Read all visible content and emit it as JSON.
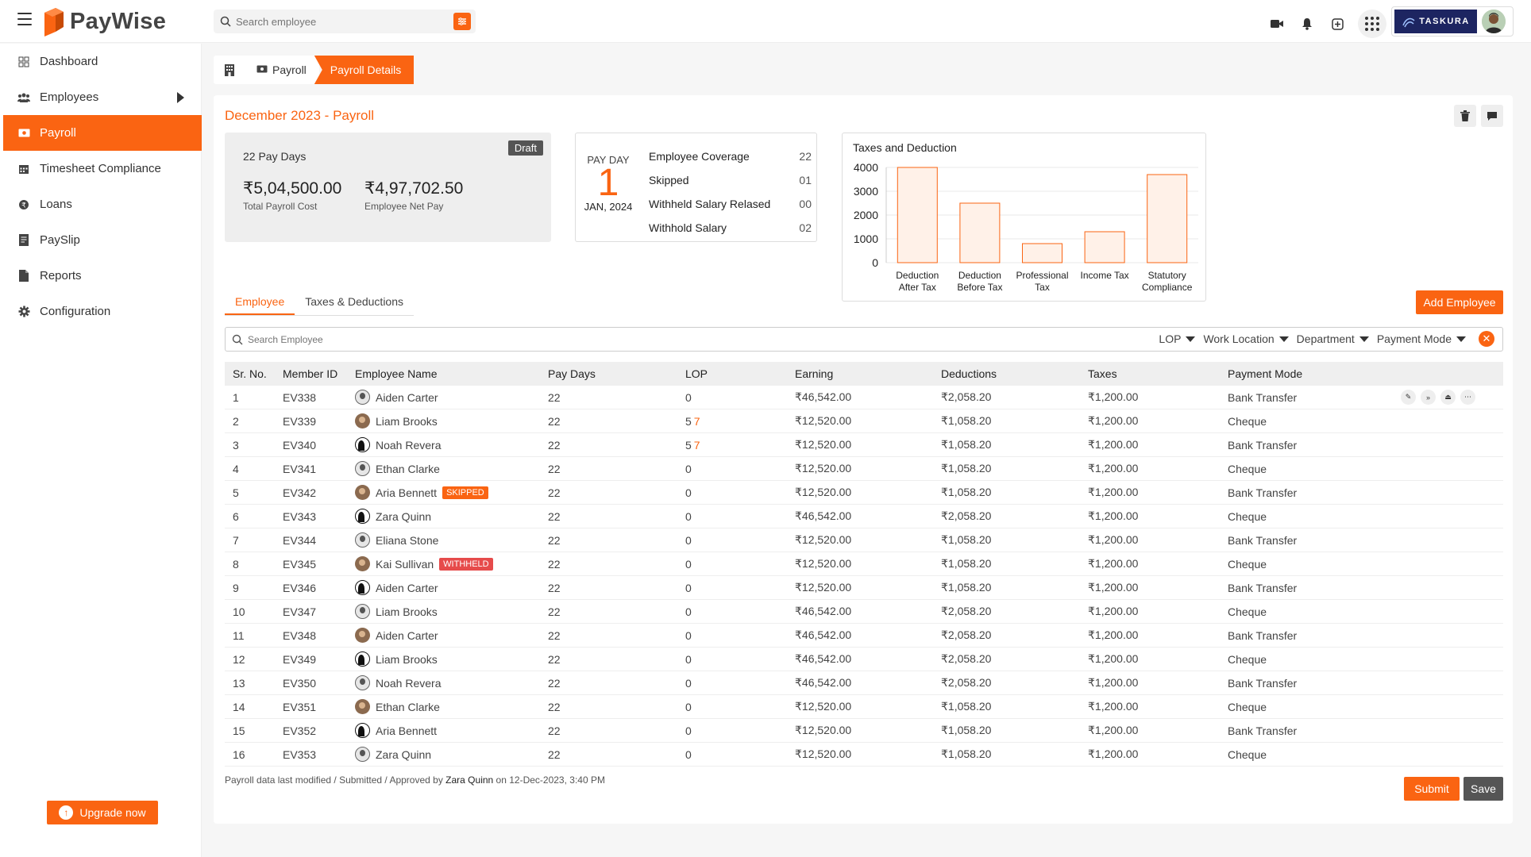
{
  "app": {
    "name": "PayWise"
  },
  "topbar": {
    "search_placeholder": "Search employee",
    "company_logo_text": "TASKURA",
    "icons": [
      "menu-icon",
      "filter-icon",
      "video-icon",
      "bell-icon",
      "plus-square-icon",
      "apps-grid-icon"
    ]
  },
  "sidebar": {
    "items": [
      {
        "label": "Dashboard",
        "icon": "dashboard-icon"
      },
      {
        "label": "Employees",
        "icon": "users-icon"
      },
      {
        "label": "Payroll",
        "icon": "payroll-icon"
      },
      {
        "label": "Timesheet Compliance",
        "icon": "calendar-icon"
      },
      {
        "label": "Loans",
        "icon": "loan-icon"
      },
      {
        "label": "PaySlip",
        "icon": "payslip-icon"
      },
      {
        "label": "Reports",
        "icon": "report-icon"
      },
      {
        "label": "Configuration",
        "icon": "gear-icon"
      }
    ],
    "upgrade_label": "Upgrade now"
  },
  "breadcrumb": {
    "item": "Payroll",
    "active": "Payroll Details"
  },
  "payroll": {
    "title": "December 2023 - Payroll",
    "status": "Draft",
    "pay_days": "22 Pay Days",
    "total_cost": "₹5,04,500.00",
    "total_cost_label": "Total Payroll Cost",
    "net_pay": "₹4,97,702.50",
    "net_pay_label": "Employee Net Pay"
  },
  "payday": {
    "label": "PAY DAY",
    "day": "1",
    "date": "JAN, 2024",
    "stats": [
      {
        "label": "Employee Coverage",
        "value": "22"
      },
      {
        "label": "Skipped",
        "value": "01"
      },
      {
        "label": "Withheld Salary Relased",
        "value": "00"
      },
      {
        "label": "Withhold Salary",
        "value": "02"
      }
    ]
  },
  "chart_data": {
    "type": "bar",
    "title": "Taxes and Deduction",
    "categories": [
      [
        "Deduction",
        "After Tax"
      ],
      [
        "Deduction",
        "Before Tax"
      ],
      [
        "Professional",
        "Tax"
      ],
      [
        "Income Tax"
      ],
      [
        "Statutory",
        "Compliance"
      ]
    ],
    "values": [
      4000,
      2500,
      800,
      1300,
      3700
    ],
    "ylim": [
      0,
      4000
    ],
    "yticks": [
      0,
      1000,
      2000,
      3000,
      4000
    ],
    "grid": true,
    "bar_fill": "#fff1e8",
    "bar_stroke": "#fa6412"
  },
  "tabs": [
    "Employee",
    "Taxes & Deductions"
  ],
  "add_employee_label": "Add Employee",
  "filters": {
    "search_placeholder": "Search Employee",
    "dropdowns": [
      "LOP",
      "Work Location",
      "Department",
      "Payment Mode"
    ]
  },
  "table": {
    "headers": [
      "Sr. No.",
      "Member ID",
      "Employee Name",
      "Pay Days",
      "LOP",
      "Earning",
      "Deductions",
      "Taxes",
      "Payment Mode"
    ],
    "rows": [
      {
        "sr": "1",
        "id": "EV338",
        "name": "Aiden Carter",
        "avatar": "a",
        "badge": "",
        "pay_days": "22",
        "lop": "0",
        "lop_extra": "",
        "earning": "₹46,542.00",
        "deductions": "₹2,058.20",
        "taxes": "₹1,200.00",
        "mode": "Bank Transfer",
        "actions": true
      },
      {
        "sr": "2",
        "id": "EV339",
        "name": "Liam Brooks",
        "avatar": "b",
        "badge": "",
        "pay_days": "22",
        "lop": "5",
        "lop_extra": "7",
        "earning": "₹12,520.00",
        "deductions": "₹1,058.20",
        "taxes": "₹1,200.00",
        "mode": "Cheque"
      },
      {
        "sr": "3",
        "id": "EV340",
        "name": "Noah Revera",
        "avatar": "c",
        "badge": "",
        "pay_days": "22",
        "lop": "5",
        "lop_extra": "7",
        "earning": "₹12,520.00",
        "deductions": "₹1,058.20",
        "taxes": "₹1,200.00",
        "mode": "Bank Transfer"
      },
      {
        "sr": "4",
        "id": "EV341",
        "name": "Ethan Clarke",
        "avatar": "a",
        "badge": "",
        "pay_days": "22",
        "lop": "0",
        "lop_extra": "",
        "earning": "₹12,520.00",
        "deductions": "₹1,058.20",
        "taxes": "₹1,200.00",
        "mode": "Cheque"
      },
      {
        "sr": "5",
        "id": "EV342",
        "name": "Aria Bennett",
        "avatar": "b",
        "badge": "SKIPPED",
        "pay_days": "22",
        "lop": "0",
        "lop_extra": "",
        "earning": "₹12,520.00",
        "deductions": "₹1,058.20",
        "taxes": "₹1,200.00",
        "mode": "Bank Transfer"
      },
      {
        "sr": "6",
        "id": "EV343",
        "name": "Zara Quinn",
        "avatar": "c",
        "badge": "",
        "pay_days": "22",
        "lop": "0",
        "lop_extra": "",
        "earning": "₹46,542.00",
        "deductions": "₹2,058.20",
        "taxes": "₹1,200.00",
        "mode": "Cheque"
      },
      {
        "sr": "7",
        "id": "EV344",
        "name": "Eliana Stone",
        "avatar": "a",
        "badge": "",
        "pay_days": "22",
        "lop": "0",
        "lop_extra": "",
        "earning": "₹12,520.00",
        "deductions": "₹1,058.20",
        "taxes": "₹1,200.00",
        "mode": "Bank Transfer"
      },
      {
        "sr": "8",
        "id": "EV345",
        "name": "Kai Sullivan",
        "avatar": "b",
        "badge": "WITHHELD",
        "pay_days": "22",
        "lop": "0",
        "lop_extra": "",
        "earning": "₹12,520.00",
        "deductions": "₹1,058.20",
        "taxes": "₹1,200.00",
        "mode": "Cheque"
      },
      {
        "sr": "9",
        "id": "EV346",
        "name": "Aiden Carter",
        "avatar": "c",
        "badge": "",
        "pay_days": "22",
        "lop": "0",
        "lop_extra": "",
        "earning": "₹12,520.00",
        "deductions": "₹1,058.20",
        "taxes": "₹1,200.00",
        "mode": "Bank Transfer"
      },
      {
        "sr": "10",
        "id": "EV347",
        "name": "Liam Brooks",
        "avatar": "a",
        "badge": "",
        "pay_days": "22",
        "lop": "0",
        "lop_extra": "",
        "earning": "₹46,542.00",
        "deductions": "₹2,058.20",
        "taxes": "₹1,200.00",
        "mode": "Cheque"
      },
      {
        "sr": "11",
        "id": "EV348",
        "name": "Aiden Carter",
        "avatar": "b",
        "badge": "",
        "pay_days": "22",
        "lop": "0",
        "lop_extra": "",
        "earning": "₹46,542.00",
        "deductions": "₹2,058.20",
        "taxes": "₹1,200.00",
        "mode": "Bank Transfer"
      },
      {
        "sr": "12",
        "id": "EV349",
        "name": "Liam Brooks",
        "avatar": "c",
        "badge": "",
        "pay_days": "22",
        "lop": "0",
        "lop_extra": "",
        "earning": "₹46,542.00",
        "deductions": "₹2,058.20",
        "taxes": "₹1,200.00",
        "mode": "Cheque"
      },
      {
        "sr": "13",
        "id": "EV350",
        "name": "Noah Revera",
        "avatar": "a",
        "badge": "",
        "pay_days": "22",
        "lop": "0",
        "lop_extra": "",
        "earning": "₹46,542.00",
        "deductions": "₹2,058.20",
        "taxes": "₹1,200.00",
        "mode": "Bank Transfer"
      },
      {
        "sr": "14",
        "id": "EV351",
        "name": "Ethan Clarke",
        "avatar": "b",
        "badge": "",
        "pay_days": "22",
        "lop": "0",
        "lop_extra": "",
        "earning": "₹12,520.00",
        "deductions": "₹1,058.20",
        "taxes": "₹1,200.00",
        "mode": "Cheque"
      },
      {
        "sr": "15",
        "id": "EV352",
        "name": "Aria Bennett",
        "avatar": "c",
        "badge": "",
        "pay_days": "22",
        "lop": "0",
        "lop_extra": "",
        "earning": "₹12,520.00",
        "deductions": "₹1,058.20",
        "taxes": "₹1,200.00",
        "mode": "Bank Transfer"
      },
      {
        "sr": "16",
        "id": "EV353",
        "name": "Zara Quinn",
        "avatar": "a",
        "badge": "",
        "pay_days": "22",
        "lop": "0",
        "lop_extra": "",
        "earning": "₹12,520.00",
        "deductions": "₹1,058.20",
        "taxes": "₹1,200.00",
        "mode": "Cheque"
      }
    ]
  },
  "footer": {
    "note_prefix": "Payroll data last modified / Submitted / Approved by",
    "note_user": "Zara Quinn",
    "note_suffix": "on 12-Dec-2023, 3:40 PM",
    "submit_label": "Submit",
    "save_label": "Save"
  }
}
